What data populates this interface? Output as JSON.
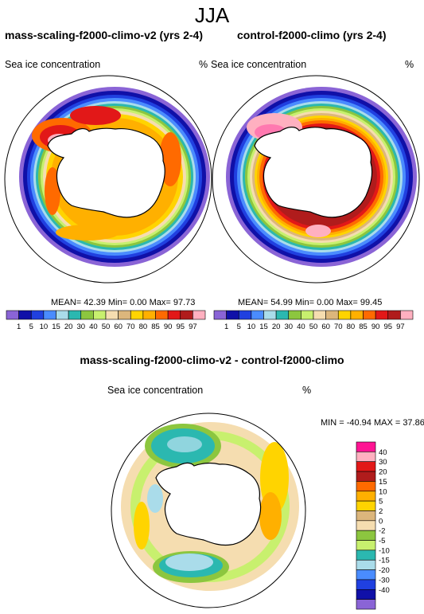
{
  "figure_title": "JJA",
  "colors": {
    "c1": "#8a64d6",
    "c2": "#1010a8",
    "c3": "#2040e0",
    "c4": "#4a8cff",
    "c5": "#aadcea",
    "c6": "#2bb8b0",
    "c7": "#8cc63f",
    "c8": "#c8f06e",
    "c9": "#f5ddb0",
    "c10": "#dcb67c",
    "c11": "#ffd400",
    "c12": "#ffb000",
    "c13": "#ff6a00",
    "c14": "#e21818",
    "c15": "#b01c1c",
    "c16": "#ffb0c0",
    "c17": "#ff1493"
  },
  "panels": {
    "left": {
      "title": "mass-scaling-f2000-climo-v2 (yrs 2-4)",
      "variable": "Sea ice concentration",
      "units": "%",
      "stats": {
        "mean_label": "MEAN=",
        "mean": "42.39",
        "min_label": "Min=",
        "min": "0.00",
        "max_label": "Max=",
        "max": "97.73"
      }
    },
    "right": {
      "title": "control-f2000-climo (yrs 2-4)",
      "variable": "Sea ice concentration",
      "units": "%",
      "stats": {
        "mean_label": "MEAN=",
        "mean": "54.99",
        "min_label": "Min=",
        "min": "0.00",
        "max_label": "Max=",
        "max": "99.45"
      }
    },
    "diff": {
      "title": "mass-scaling-f2000-climo-v2 - control-f2000-climo",
      "variable": "Sea ice concentration",
      "units": "%",
      "stats_text": "MIN = -40.94 MAX =  37.86"
    }
  },
  "chart_data": [
    {
      "type": "heatmap",
      "projection": "south polar stereographic",
      "title": "mass-scaling-f2000-climo-v2 (yrs 2-4)",
      "variable": "Sea ice concentration",
      "units": "%",
      "levels": [
        1,
        5,
        10,
        15,
        20,
        30,
        40,
        50,
        60,
        70,
        80,
        85,
        90,
        95,
        97
      ],
      "mean": 42.39,
      "min": 0.0,
      "max": 97.73
    },
    {
      "type": "heatmap",
      "projection": "south polar stereographic",
      "title": "control-f2000-climo (yrs 2-4)",
      "variable": "Sea ice concentration",
      "units": "%",
      "levels": [
        1,
        5,
        10,
        15,
        20,
        30,
        40,
        50,
        60,
        70,
        80,
        85,
        90,
        95,
        97
      ],
      "mean": 54.99,
      "min": 0.0,
      "max": 99.45
    },
    {
      "type": "heatmap",
      "projection": "south polar stereographic",
      "title": "mass-scaling-f2000-climo-v2 - control-f2000-climo",
      "variable": "Sea ice concentration",
      "units": "%",
      "levels": [
        -40,
        -30,
        -20,
        -15,
        -10,
        -5,
        -2,
        0,
        2,
        5,
        10,
        15,
        20,
        30,
        40
      ],
      "min": -40.94,
      "max": 37.86
    }
  ],
  "legend_labels": {
    "left": [
      "1",
      "5",
      "10",
      "15",
      "20",
      "30",
      "40",
      "50",
      "60",
      "70",
      "80",
      "85",
      "90",
      "95",
      "97"
    ],
    "right": [
      "1",
      "5",
      "10",
      "15",
      "20",
      "30",
      "40",
      "50",
      "60",
      "70",
      "80",
      "85",
      "90",
      "95",
      "97"
    ],
    "diff": [
      "40",
      "30",
      "20",
      "15",
      "10",
      "5",
      "2",
      "0",
      "-2",
      "-5",
      "-10",
      "-15",
      "-20",
      "-30",
      "-40"
    ]
  }
}
